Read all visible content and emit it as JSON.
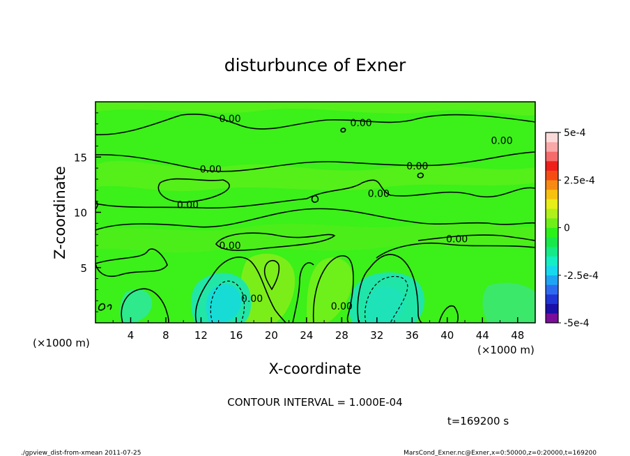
{
  "chart_data": {
    "type": "heatmap",
    "title": "disturbunce of Exner",
    "xlabel": "X-coordinate",
    "ylabel": "Z-coordinate",
    "x_unit": "(×1000 m)",
    "z_unit": "(×1000 m)",
    "xlim": [
      0,
      50
    ],
    "ylim": [
      0,
      20
    ],
    "x_ticks": [
      4,
      8,
      12,
      16,
      20,
      24,
      28,
      32,
      36,
      40,
      44,
      48
    ],
    "y_ticks": [
      5,
      10,
      15
    ],
    "contour_labels": [
      {
        "text": "0.00",
        "x": 15.3,
        "z": 18.5
      },
      {
        "text": "0.00",
        "x": 30.2,
        "z": 18.1
      },
      {
        "text": "0.00",
        "x": 46.2,
        "z": 16.5
      },
      {
        "text": "0.00",
        "x": 13.1,
        "z": 13.9
      },
      {
        "text": "0.00",
        "x": 36.6,
        "z": 14.2
      },
      {
        "text": "0.00",
        "x": 10.5,
        "z": 10.7
      },
      {
        "text": "0.00",
        "x": 32.2,
        "z": 11.7
      },
      {
        "text": "0.00",
        "x": 41.1,
        "z": 7.6
      },
      {
        "text": "0.00",
        "x": 15.3,
        "z": 7.0
      },
      {
        "text": "0.00",
        "x": 17.8,
        "z": 2.2
      },
      {
        "text": "0.00",
        "x": 28.0,
        "z": 1.5
      }
    ],
    "colorbar": {
      "min": -0.0005,
      "max": 0.0005,
      "tick_labels": [
        "5e-4",
        "2.5e-4",
        "0",
        "-2.5e-4",
        "-5e-4"
      ],
      "colors": [
        "#7a0d9a",
        "#1a0fa8",
        "#1f35d6",
        "#2c6bf0",
        "#1ea4f3",
        "#16d8ee",
        "#14eec4",
        "#15ea86",
        "#18e84a",
        "#2cf01a",
        "#6fef1a",
        "#b1f01a",
        "#e8ee17",
        "#f7c20f",
        "#f78a12",
        "#f54c14",
        "#ef1f1a",
        "#f56a6a",
        "#f9a8a8",
        "#fcd9d9"
      ]
    },
    "contour_interval_text": "CONTOUR INTERVAL = 1.000E-04",
    "time_text": "t=169200 s"
  },
  "footer": {
    "left": "./gpview_dist-from-xmean  2011-07-25",
    "right": "MarsCond_Exner.nc@Exner,x=0:50000,z=0:20000,t=169200"
  }
}
